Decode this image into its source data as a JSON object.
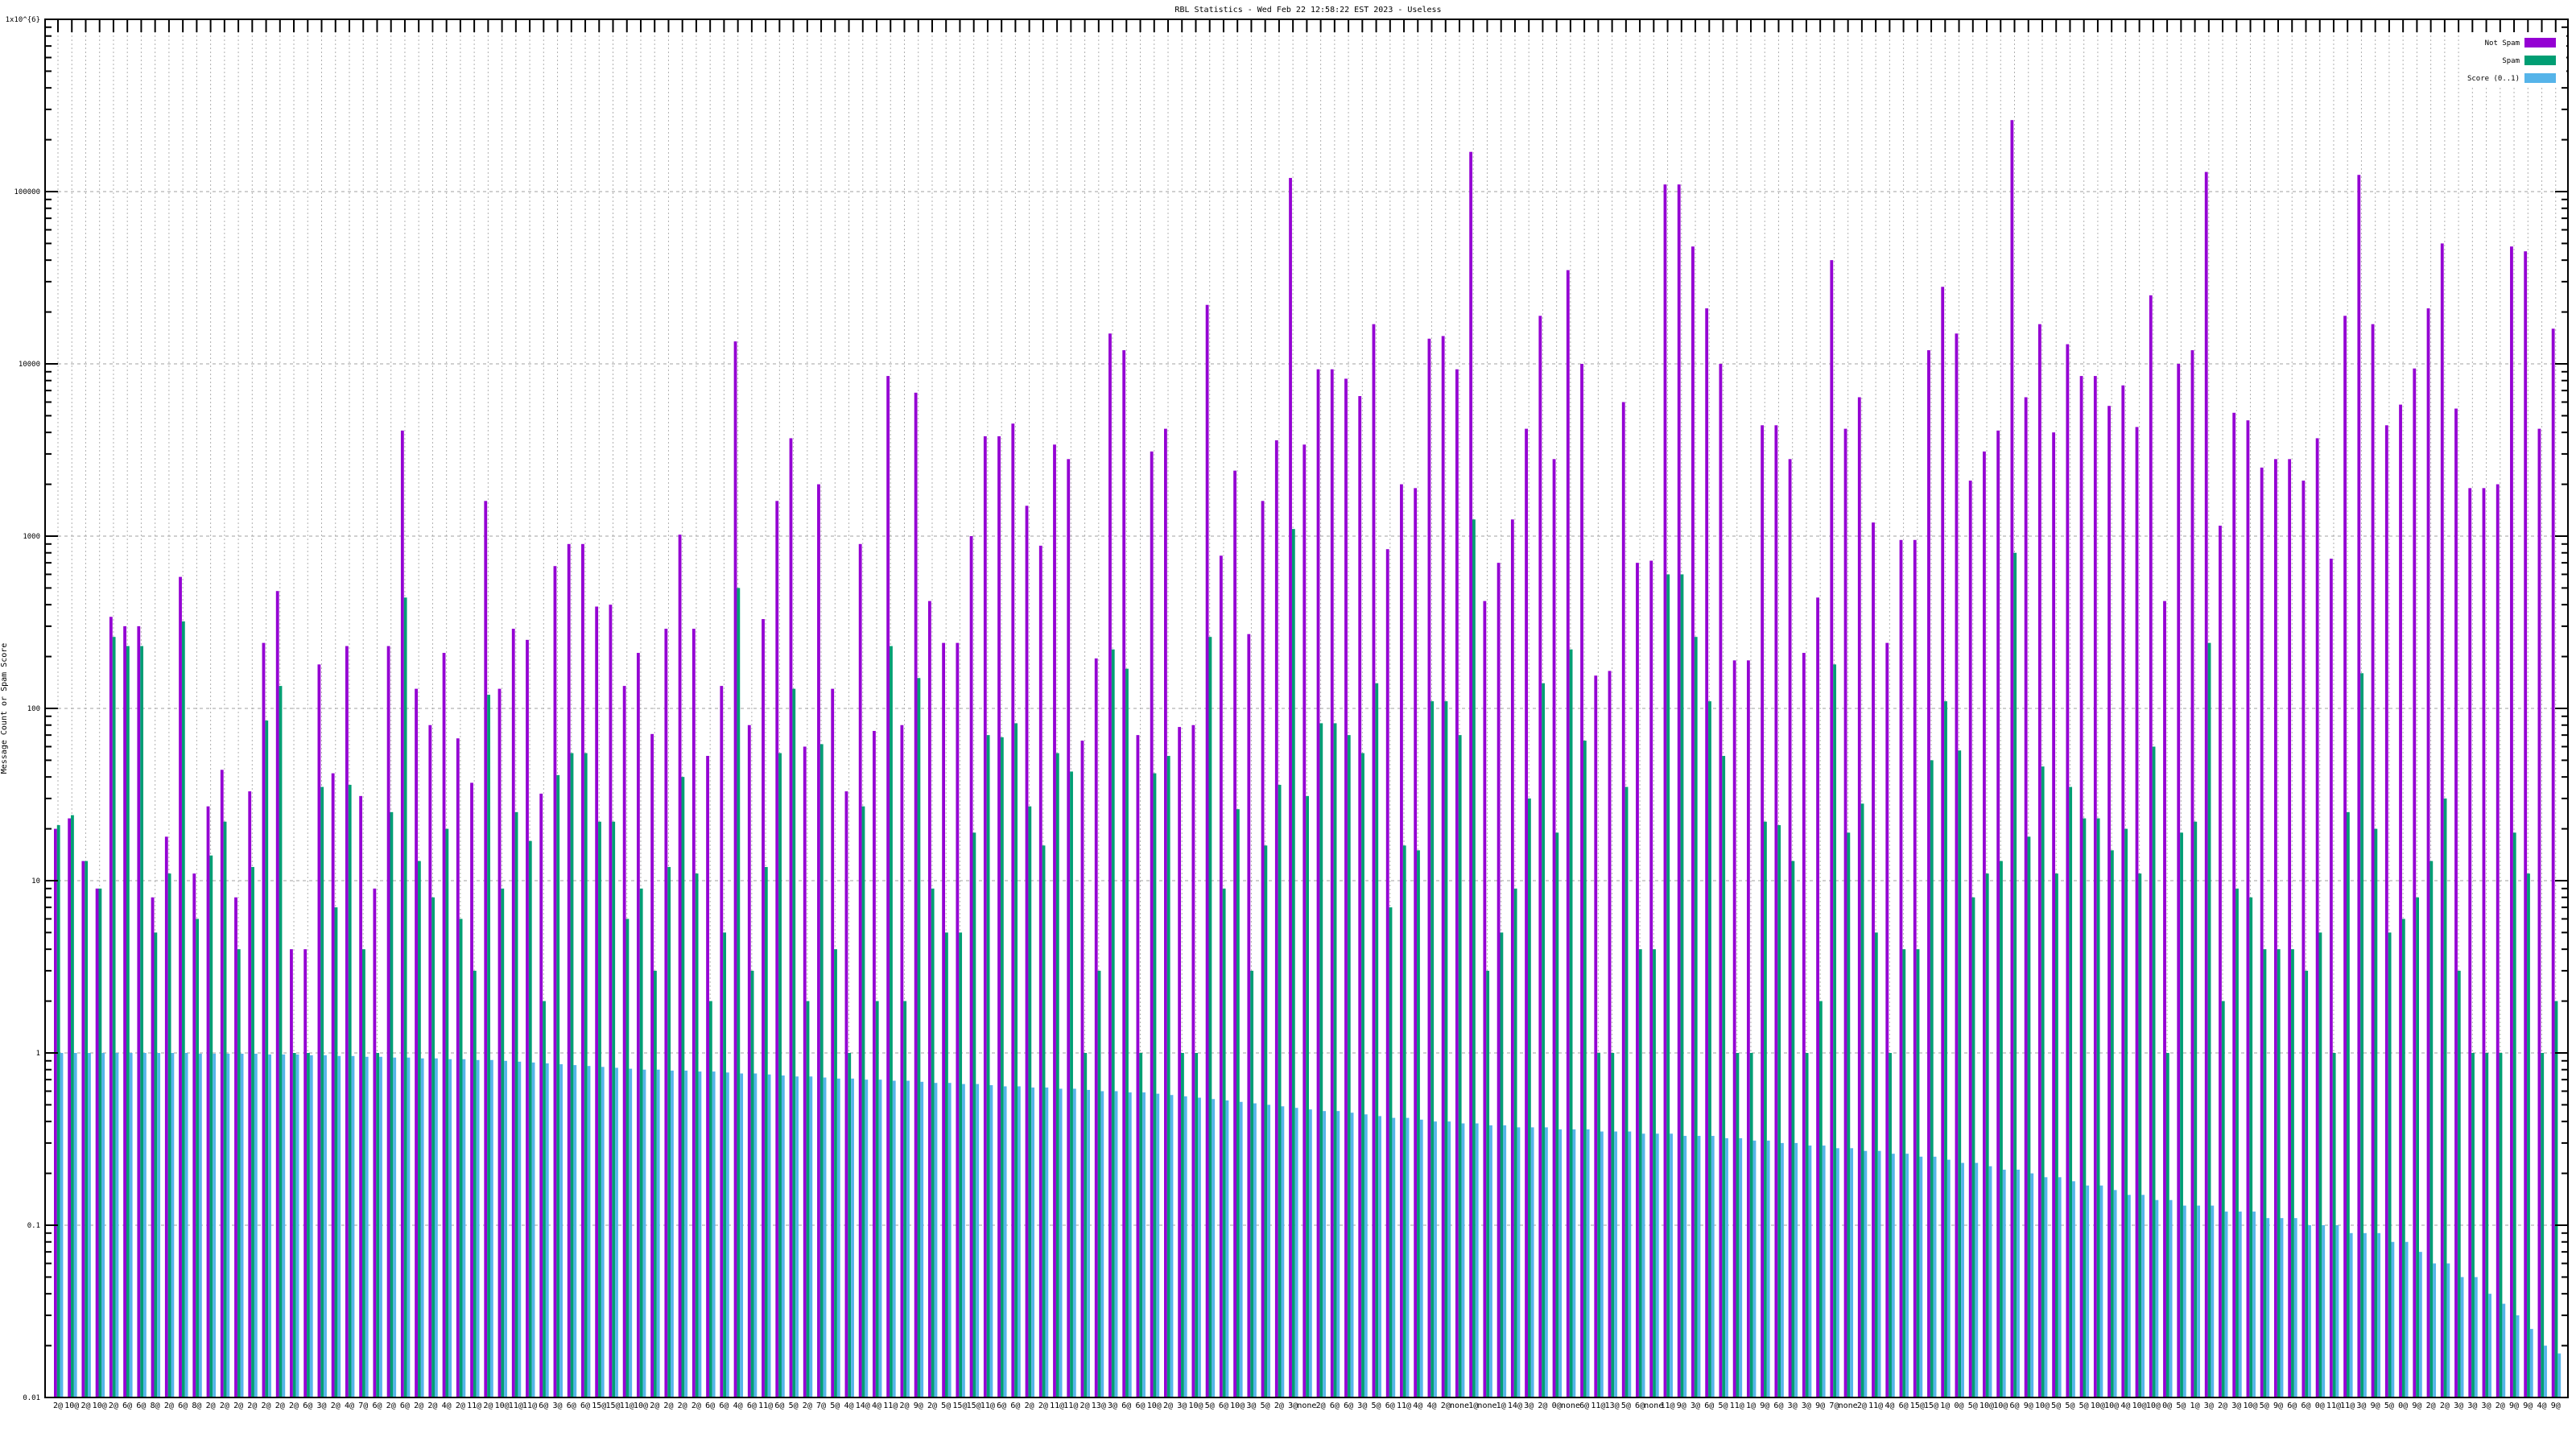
{
  "chart_data": {
    "type": "bar",
    "title": "RBL Statistics - Wed Feb 22 12:58:22 EST 2023 - Useless",
    "xlabel": "",
    "ylabel": "Message Count or Spam Score",
    "yscale": "log",
    "ylim": [
      0.01,
      1000000
    ],
    "yticks": [
      "0.01",
      "0.1",
      "1",
      "10",
      "100",
      "1000",
      "10000",
      "100000",
      "1x10^{6}"
    ],
    "grid": true,
    "legend_position": "top-right",
    "categories": [
      "2@",
      "10@",
      "2@",
      "10@",
      "2@",
      "6@",
      "6@",
      "8@",
      "2@",
      "6@",
      "8@",
      "2@",
      "2@",
      "2@",
      "2@",
      "2@",
      "2@",
      "2@",
      "6@",
      "3@",
      "2@",
      "4@",
      "7@",
      "6@",
      "2@",
      "6@",
      "2@",
      "2@",
      "4@",
      "2@",
      "11@",
      "2@",
      "10@",
      "11@",
      "11@",
      "6@",
      "3@",
      "6@",
      "6@",
      "15@",
      "15@",
      "11@",
      "10@",
      "2@",
      "2@",
      "2@",
      "2@",
      "6@",
      "6@",
      "4@",
      "6@",
      "11@",
      "6@",
      "5@",
      "2@",
      "7@",
      "5@",
      "4@",
      "14@",
      "4@",
      "11@",
      "2@",
      "9@",
      "2@",
      "5@",
      "15@",
      "15@",
      "11@",
      "6@",
      "6@",
      "2@",
      "2@",
      "11@",
      "11@",
      "2@",
      "13@",
      "3@",
      "6@",
      "6@",
      "10@",
      "2@",
      "3@",
      "10@",
      "5@",
      "6@",
      "10@",
      "3@",
      "5@",
      "2@",
      "3@",
      "none",
      "2@",
      "6@",
      "6@",
      "3@",
      "5@",
      "6@",
      "11@",
      "4@",
      "4@",
      "2@",
      "none",
      "1@",
      "none",
      "1@",
      "14@",
      "3@",
      "2@",
      "0@",
      "none",
      "6@",
      "11@",
      "13@",
      "5@",
      "6@",
      "none",
      "11@",
      "9@",
      "3@",
      "6@",
      "5@",
      "11@",
      "1@",
      "9@",
      "6@",
      "3@",
      "3@",
      "9@",
      "7@",
      "none",
      "2@",
      "11@",
      "4@",
      "6@",
      "15@",
      "15@",
      "1@",
      "0@",
      "5@",
      "10@",
      "10@",
      "6@",
      "9@",
      "10@",
      "5@",
      "5@",
      "5@",
      "10@",
      "10@",
      "4@",
      "10@",
      "10@",
      "0@",
      "5@",
      "1@",
      "3@",
      "2@",
      "3@",
      "10@",
      "5@",
      "9@",
      "6@",
      "6@",
      "0@",
      "11@",
      "11@",
      "3@",
      "9@",
      "5@",
      "0@",
      "9@",
      "2@",
      "2@",
      "3@",
      "3@",
      "3@",
      "2@",
      "9@",
      "9@",
      "4@",
      "9@"
    ],
    "series": [
      {
        "name": "Not Spam",
        "color": "#9400d3",
        "values": [
          20,
          23,
          13,
          9,
          340,
          300,
          300,
          8,
          18,
          580,
          11,
          27,
          44,
          8,
          33,
          240,
          480,
          4,
          4,
          180,
          42,
          230,
          31,
          9,
          230,
          4100,
          130,
          80,
          210,
          67,
          37,
          1600,
          130,
          290,
          250,
          32,
          670,
          900,
          900,
          390,
          400,
          135,
          210,
          71,
          290,
          1020,
          290,
          53,
          135,
          13500,
          80,
          330,
          1600,
          3700,
          60,
          2000,
          130,
          33,
          900,
          74,
          8500,
          80,
          6800,
          420,
          240,
          240,
          1000,
          3800,
          3800,
          4500,
          1500,
          880,
          3400,
          2800,
          65,
          195,
          15000,
          12000,
          70,
          3100,
          4200,
          78,
          80,
          22000,
          770,
          2400,
          270,
          1600,
          3600,
          120000,
          3400,
          9300,
          9300,
          8200,
          6500,
          17000,
          840,
          2000,
          1900,
          14000,
          14500,
          9300,
          170000,
          420,
          700,
          1250,
          4200,
          19000,
          2800,
          35000,
          10000,
          155,
          165,
          6000,
          700,
          720,
          110000,
          110000,
          48000,
          21000,
          10000,
          190,
          190,
          4400,
          4400,
          2800,
          210,
          440,
          40000,
          4200,
          6400,
          1200,
          240,
          950,
          950,
          12000,
          28000,
          15000,
          2100,
          3100,
          4100,
          260000,
          6400,
          17000,
          4000,
          13000,
          8500,
          8500,
          5700,
          7500,
          4300,
          25000,
          420,
          10000,
          12000,
          130000,
          1150,
          5200,
          4700,
          2500,
          2800,
          2800,
          2100,
          3700,
          740,
          19000,
          125000,
          17000,
          4400,
          5800,
          9400,
          21000,
          50000,
          5500,
          1900,
          1900,
          2000,
          48000,
          45000,
          4200,
          16000
        ]
      },
      {
        "name": "Spam",
        "color": "#009e73",
        "values": [
          21,
          24,
          13,
          9,
          260,
          230,
          230,
          5,
          11,
          320,
          6,
          14,
          22,
          4,
          12,
          85,
          135,
          1,
          1,
          35,
          7,
          36,
          4,
          1,
          25,
          440,
          13,
          8,
          20,
          6,
          3,
          120,
          9,
          25,
          17,
          2,
          41,
          55,
          55,
          22,
          22,
          6,
          9,
          3,
          12,
          40,
          11,
          2,
          5,
          500,
          3,
          12,
          55,
          130,
          2,
          62,
          4,
          1,
          27,
          2,
          230,
          2,
          150,
          9,
          5,
          5,
          19,
          70,
          68,
          82,
          27,
          16,
          55,
          43,
          1,
          3,
          220,
          170,
          1,
          42,
          53,
          1,
          1,
          260,
          9,
          26,
          3,
          16,
          36,
          1100,
          31,
          82,
          82,
          70,
          55,
          140,
          7,
          16,
          15,
          110,
          110,
          70,
          1250,
          3,
          5,
          9,
          30,
          140,
          19,
          220,
          65,
          1,
          1,
          35,
          4,
          4,
          600,
          600,
          260,
          110,
          53,
          1,
          1,
          22,
          21,
          13,
          1,
          2,
          180,
          19,
          28,
          5,
          1,
          4,
          4,
          50,
          110,
          57,
          8,
          11,
          13,
          800,
          18,
          46,
          11,
          35,
          23,
          23,
          15,
          20,
          11,
          60,
          1,
          19,
          22,
          240,
          2,
          9,
          8,
          4,
          4,
          4,
          3,
          5,
          1,
          25,
          160,
          20,
          5,
          6,
          8,
          13,
          30,
          3,
          1,
          1,
          1,
          19,
          11,
          1,
          2
        ]
      },
      {
        "name": "Score (0..1)",
        "color": "#56b4e9",
        "values": [
          1,
          1,
          1,
          1,
          1,
          1,
          1,
          1,
          1,
          1,
          0.99,
          0.99,
          0.99,
          0.99,
          0.99,
          0.98,
          0.98,
          0.98,
          0.97,
          0.97,
          0.96,
          0.96,
          0.95,
          0.95,
          0.94,
          0.94,
          0.93,
          0.93,
          0.92,
          0.92,
          0.91,
          0.91,
          0.9,
          0.89,
          0.88,
          0.87,
          0.86,
          0.85,
          0.84,
          0.83,
          0.82,
          0.81,
          0.8,
          0.8,
          0.79,
          0.79,
          0.78,
          0.78,
          0.77,
          0.76,
          0.76,
          0.75,
          0.74,
          0.73,
          0.73,
          0.72,
          0.71,
          0.71,
          0.7,
          0.7,
          0.69,
          0.69,
          0.68,
          0.67,
          0.67,
          0.66,
          0.66,
          0.65,
          0.64,
          0.64,
          0.63,
          0.63,
          0.62,
          0.62,
          0.61,
          0.6,
          0.6,
          0.59,
          0.59,
          0.58,
          0.57,
          0.56,
          0.55,
          0.54,
          0.53,
          0.52,
          0.51,
          0.5,
          0.49,
          0.48,
          0.47,
          0.46,
          0.46,
          0.45,
          0.44,
          0.43,
          0.42,
          0.42,
          0.41,
          0.4,
          0.4,
          0.39,
          0.39,
          0.38,
          0.38,
          0.37,
          0.37,
          0.37,
          0.36,
          0.36,
          0.36,
          0.35,
          0.35,
          0.35,
          0.34,
          0.34,
          0.34,
          0.33,
          0.33,
          0.33,
          0.32,
          0.32,
          0.31,
          0.31,
          0.3,
          0.3,
          0.29,
          0.29,
          0.28,
          0.28,
          0.27,
          0.27,
          0.26,
          0.26,
          0.25,
          0.25,
          0.24,
          0.23,
          0.23,
          0.22,
          0.21,
          0.21,
          0.2,
          0.19,
          0.19,
          0.18,
          0.17,
          0.17,
          0.16,
          0.15,
          0.15,
          0.14,
          0.14,
          0.13,
          0.13,
          0.13,
          0.12,
          0.12,
          0.12,
          0.11,
          0.11,
          0.11,
          0.1,
          0.1,
          0.1,
          0.09,
          0.09,
          0.09,
          0.08,
          0.08,
          0.07,
          0.06,
          0.06,
          0.05,
          0.05,
          0.04,
          0.035,
          0.03,
          0.025,
          0.02,
          0.018
        ]
      }
    ]
  }
}
